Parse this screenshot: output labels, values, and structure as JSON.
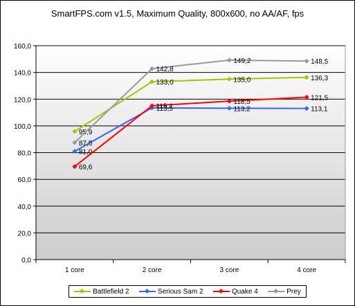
{
  "chart_data": {
    "type": "line",
    "title": "SmartFPS.com v1.5, Maximum Quality, 800x600, no AA/AF, fps",
    "categories": [
      "1 core",
      "2 core",
      "3 core",
      "4 core"
    ],
    "ylim": [
      0,
      160
    ],
    "yticks": [
      "0,0",
      "20,0",
      "40,0",
      "60,0",
      "80,0",
      "100,0",
      "120,0",
      "140,0",
      "160,0"
    ],
    "grid": true,
    "legend_position": "bottom",
    "series": [
      {
        "name": "Battlefield 2",
        "color": "#99cc00",
        "values": [
          95.9,
          133.0,
          135.0,
          136.3
        ],
        "labels": [
          "95,9",
          "133,0",
          "135,0",
          "136,3"
        ]
      },
      {
        "name": "Serious Sam 2",
        "color": "#3366ff",
        "values": [
          81.0,
          113.5,
          113.2,
          113.1
        ],
        "labels": [
          "81,0",
          "113,5",
          "113,2",
          "113,1"
        ]
      },
      {
        "name": "Quake 4",
        "color": "#ff0000",
        "values": [
          69.6,
          115.1,
          118.5,
          121.5
        ],
        "labels": [
          "69,6",
          "115,1",
          "118,5",
          "121,5"
        ]
      },
      {
        "name": "Prey",
        "color": "#999999",
        "values": [
          87.5,
          142.8,
          149.2,
          148.5
        ],
        "labels": [
          "87,5",
          "142,8",
          "149,2",
          "148,5"
        ]
      }
    ]
  }
}
